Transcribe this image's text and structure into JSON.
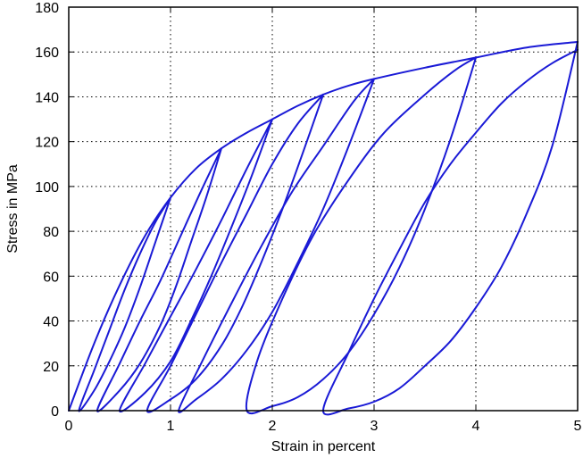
{
  "chart_data": {
    "type": "line",
    "title": "",
    "xlabel": "Strain in percent",
    "ylabel": "Stress in MPa",
    "xlim": [
      0,
      5
    ],
    "ylim": [
      0,
      180
    ],
    "xticks": [
      "0",
      "1",
      "2",
      "3",
      "4",
      "5"
    ],
    "yticks": [
      "0",
      "20",
      "40",
      "60",
      "80",
      "100",
      "120",
      "140",
      "160",
      "180"
    ],
    "grid": true,
    "legend": "none",
    "series_color": "#1a1ad6",
    "series": [
      {
        "values": [
          [
            0,
            0
          ],
          [
            0.25,
            30
          ],
          [
            0.5,
            56
          ],
          [
            0.75,
            78
          ],
          [
            1.0,
            95
          ],
          [
            1.25,
            108
          ],
          [
            1.5,
            117
          ],
          [
            1.75,
            124
          ],
          [
            2.0,
            130
          ],
          [
            2.25,
            136
          ],
          [
            2.5,
            141
          ],
          [
            2.75,
            145
          ],
          [
            3.0,
            148
          ],
          [
            3.5,
            153
          ],
          [
            4.0,
            157.5
          ],
          [
            4.5,
            162
          ],
          [
            5.0,
            164.5
          ]
        ]
      },
      {
        "values": [
          [
            1.0,
            95
          ],
          [
            0.85,
            75
          ],
          [
            0.7,
            55
          ],
          [
            0.55,
            37
          ],
          [
            0.4,
            22
          ],
          [
            0.25,
            9
          ],
          [
            0.1,
            0
          ],
          [
            0.25,
            18
          ],
          [
            0.4,
            36
          ],
          [
            0.55,
            54
          ],
          [
            0.7,
            70
          ],
          [
            0.85,
            84
          ],
          [
            1.0,
            95
          ]
        ]
      },
      {
        "values": [
          [
            1.5,
            117
          ],
          [
            1.35,
            95
          ],
          [
            1.2,
            75
          ],
          [
            1.05,
            55
          ],
          [
            0.9,
            38
          ],
          [
            0.7,
            21
          ],
          [
            0.5,
            9
          ],
          [
            0.28,
            0
          ],
          [
            0.5,
            21
          ],
          [
            0.7,
            40
          ],
          [
            0.9,
            58
          ],
          [
            1.1,
            78
          ],
          [
            1.3,
            98
          ],
          [
            1.5,
            117
          ]
        ]
      },
      {
        "values": [
          [
            2.0,
            130
          ],
          [
            1.8,
            105
          ],
          [
            1.6,
            82
          ],
          [
            1.4,
            60
          ],
          [
            1.2,
            40
          ],
          [
            1.0,
            22
          ],
          [
            0.75,
            8
          ],
          [
            0.5,
            0
          ],
          [
            0.75,
            21
          ],
          [
            1.0,
            42
          ],
          [
            1.25,
            63
          ],
          [
            1.5,
            85
          ],
          [
            1.75,
            108
          ],
          [
            2.0,
            130
          ]
        ]
      },
      {
        "values": [
          [
            2.5,
            141
          ],
          [
            2.3,
            115
          ],
          [
            2.1,
            90
          ],
          [
            1.9,
            67
          ],
          [
            1.7,
            46
          ],
          [
            1.5,
            29
          ],
          [
            1.25,
            14
          ],
          [
            1.0,
            5
          ],
          [
            0.77,
            0
          ],
          [
            1.0,
            20
          ],
          [
            1.25,
            43
          ],
          [
            1.5,
            66
          ],
          [
            1.75,
            88
          ],
          [
            2.0,
            110
          ],
          [
            2.25,
            128
          ],
          [
            2.5,
            141
          ]
        ]
      },
      {
        "values": [
          [
            3.0,
            148
          ],
          [
            2.75,
            118
          ],
          [
            2.5,
            90
          ],
          [
            2.25,
            66
          ],
          [
            2.0,
            44
          ],
          [
            1.75,
            27
          ],
          [
            1.5,
            14
          ],
          [
            1.25,
            5
          ],
          [
            1.08,
            0
          ],
          [
            1.3,
            21
          ],
          [
            1.6,
            48
          ],
          [
            1.9,
            74
          ],
          [
            2.2,
            98
          ],
          [
            2.5,
            118
          ],
          [
            2.8,
            138
          ],
          [
            3.0,
            148
          ]
        ]
      },
      {
        "values": [
          [
            4.0,
            157.5
          ],
          [
            3.75,
            121
          ],
          [
            3.5,
            90
          ],
          [
            3.25,
            64
          ],
          [
            3.0,
            43
          ],
          [
            2.75,
            26
          ],
          [
            2.5,
            14
          ],
          [
            2.25,
            6
          ],
          [
            2.0,
            2
          ],
          [
            1.75,
            0
          ],
          [
            1.85,
            22
          ],
          [
            2.1,
            50
          ],
          [
            2.4,
            78
          ],
          [
            2.75,
            103
          ],
          [
            3.1,
            124
          ],
          [
            3.5,
            141
          ],
          [
            3.8,
            152
          ],
          [
            4.0,
            157.5
          ]
        ]
      },
      {
        "values": [
          [
            5.0,
            164.5
          ],
          [
            4.75,
            118
          ],
          [
            4.5,
            88
          ],
          [
            4.25,
            64
          ],
          [
            4.0,
            46
          ],
          [
            3.75,
            31
          ],
          [
            3.5,
            20
          ],
          [
            3.25,
            10
          ],
          [
            3.0,
            4
          ],
          [
            2.75,
            1
          ],
          [
            2.5,
            0
          ],
          [
            2.75,
            26
          ],
          [
            3.0,
            50
          ],
          [
            3.25,
            72
          ],
          [
            3.5,
            93
          ],
          [
            3.75,
            110
          ],
          [
            4.0,
            124
          ],
          [
            4.25,
            137
          ],
          [
            4.5,
            147
          ],
          [
            4.75,
            155
          ],
          [
            5.0,
            161
          ]
        ]
      }
    ]
  }
}
